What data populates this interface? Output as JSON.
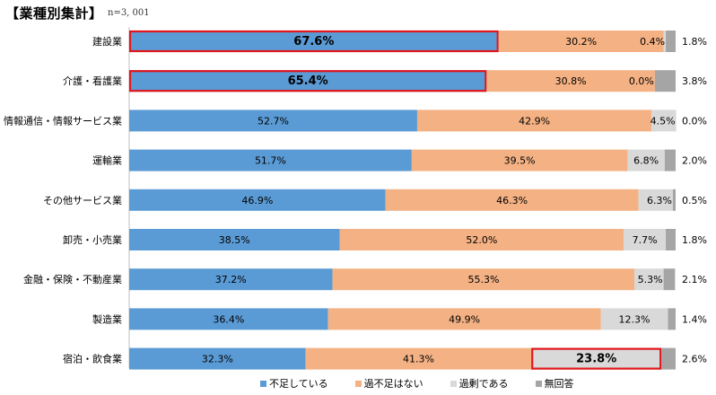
{
  "header": {
    "title": "【業種別集計】",
    "n_label": "n=3, 001"
  },
  "colors": {
    "shortage": "#5b9bd5",
    "not_shortage": "#f4b183",
    "surplus": "#d9d9d9",
    "no_answer": "#a5a5a5",
    "highlight": "#e0161d"
  },
  "chart_data": {
    "type": "bar",
    "orientation": "horizontal",
    "stacked": true,
    "percent_axis": [
      0,
      100
    ],
    "categories": [
      "建設業",
      "介護・看護業",
      "情報通信・情報サービス業",
      "運輸業",
      "その他サービス業",
      "卸売・小売業",
      "金融・保険・不動産業",
      "製造業",
      "宿泊・飲食業"
    ],
    "series": [
      {
        "name": "不足している",
        "values": [
          67.6,
          65.4,
          52.7,
          51.7,
          46.9,
          38.5,
          37.2,
          36.4,
          32.3
        ],
        "labels": [
          "67.6%",
          "65.4%",
          "52.7%",
          "51.7%",
          "46.9%",
          "38.5%",
          "37.2%",
          "36.4%",
          "32.3%"
        ]
      },
      {
        "name": "過不足はない",
        "values": [
          30.2,
          30.8,
          42.9,
          39.5,
          46.3,
          52.0,
          55.3,
          49.9,
          41.3
        ],
        "labels": [
          "30.2%",
          "30.8%",
          "42.9%",
          "39.5%",
          "46.3%",
          "52.0%",
          "55.3%",
          "49.9%",
          "41.3%"
        ]
      },
      {
        "name": "過剰である",
        "values": [
          0.4,
          0.0,
          4.5,
          6.8,
          6.3,
          7.7,
          5.3,
          12.3,
          23.8
        ],
        "labels": [
          "0.4%",
          "0.0%",
          "4.5%",
          "6.8%",
          "6.3%",
          "7.7%",
          "5.3%",
          "12.3%",
          "23.8%"
        ]
      },
      {
        "name": "無回答",
        "values": [
          1.8,
          3.8,
          0.0,
          2.0,
          0.5,
          1.8,
          2.1,
          1.4,
          2.6
        ],
        "labels": [
          "1.8%",
          "3.8%",
          "0.0%",
          "2.0%",
          "0.5%",
          "1.8%",
          "2.1%",
          "1.4%",
          "2.6%"
        ]
      }
    ],
    "highlighted": [
      {
        "category": "建設業",
        "series": "不足している"
      },
      {
        "category": "介護・看護業",
        "series": "不足している"
      },
      {
        "category": "宿泊・飲食業",
        "series": "過剰である"
      }
    ],
    "legend_position": "bottom"
  }
}
